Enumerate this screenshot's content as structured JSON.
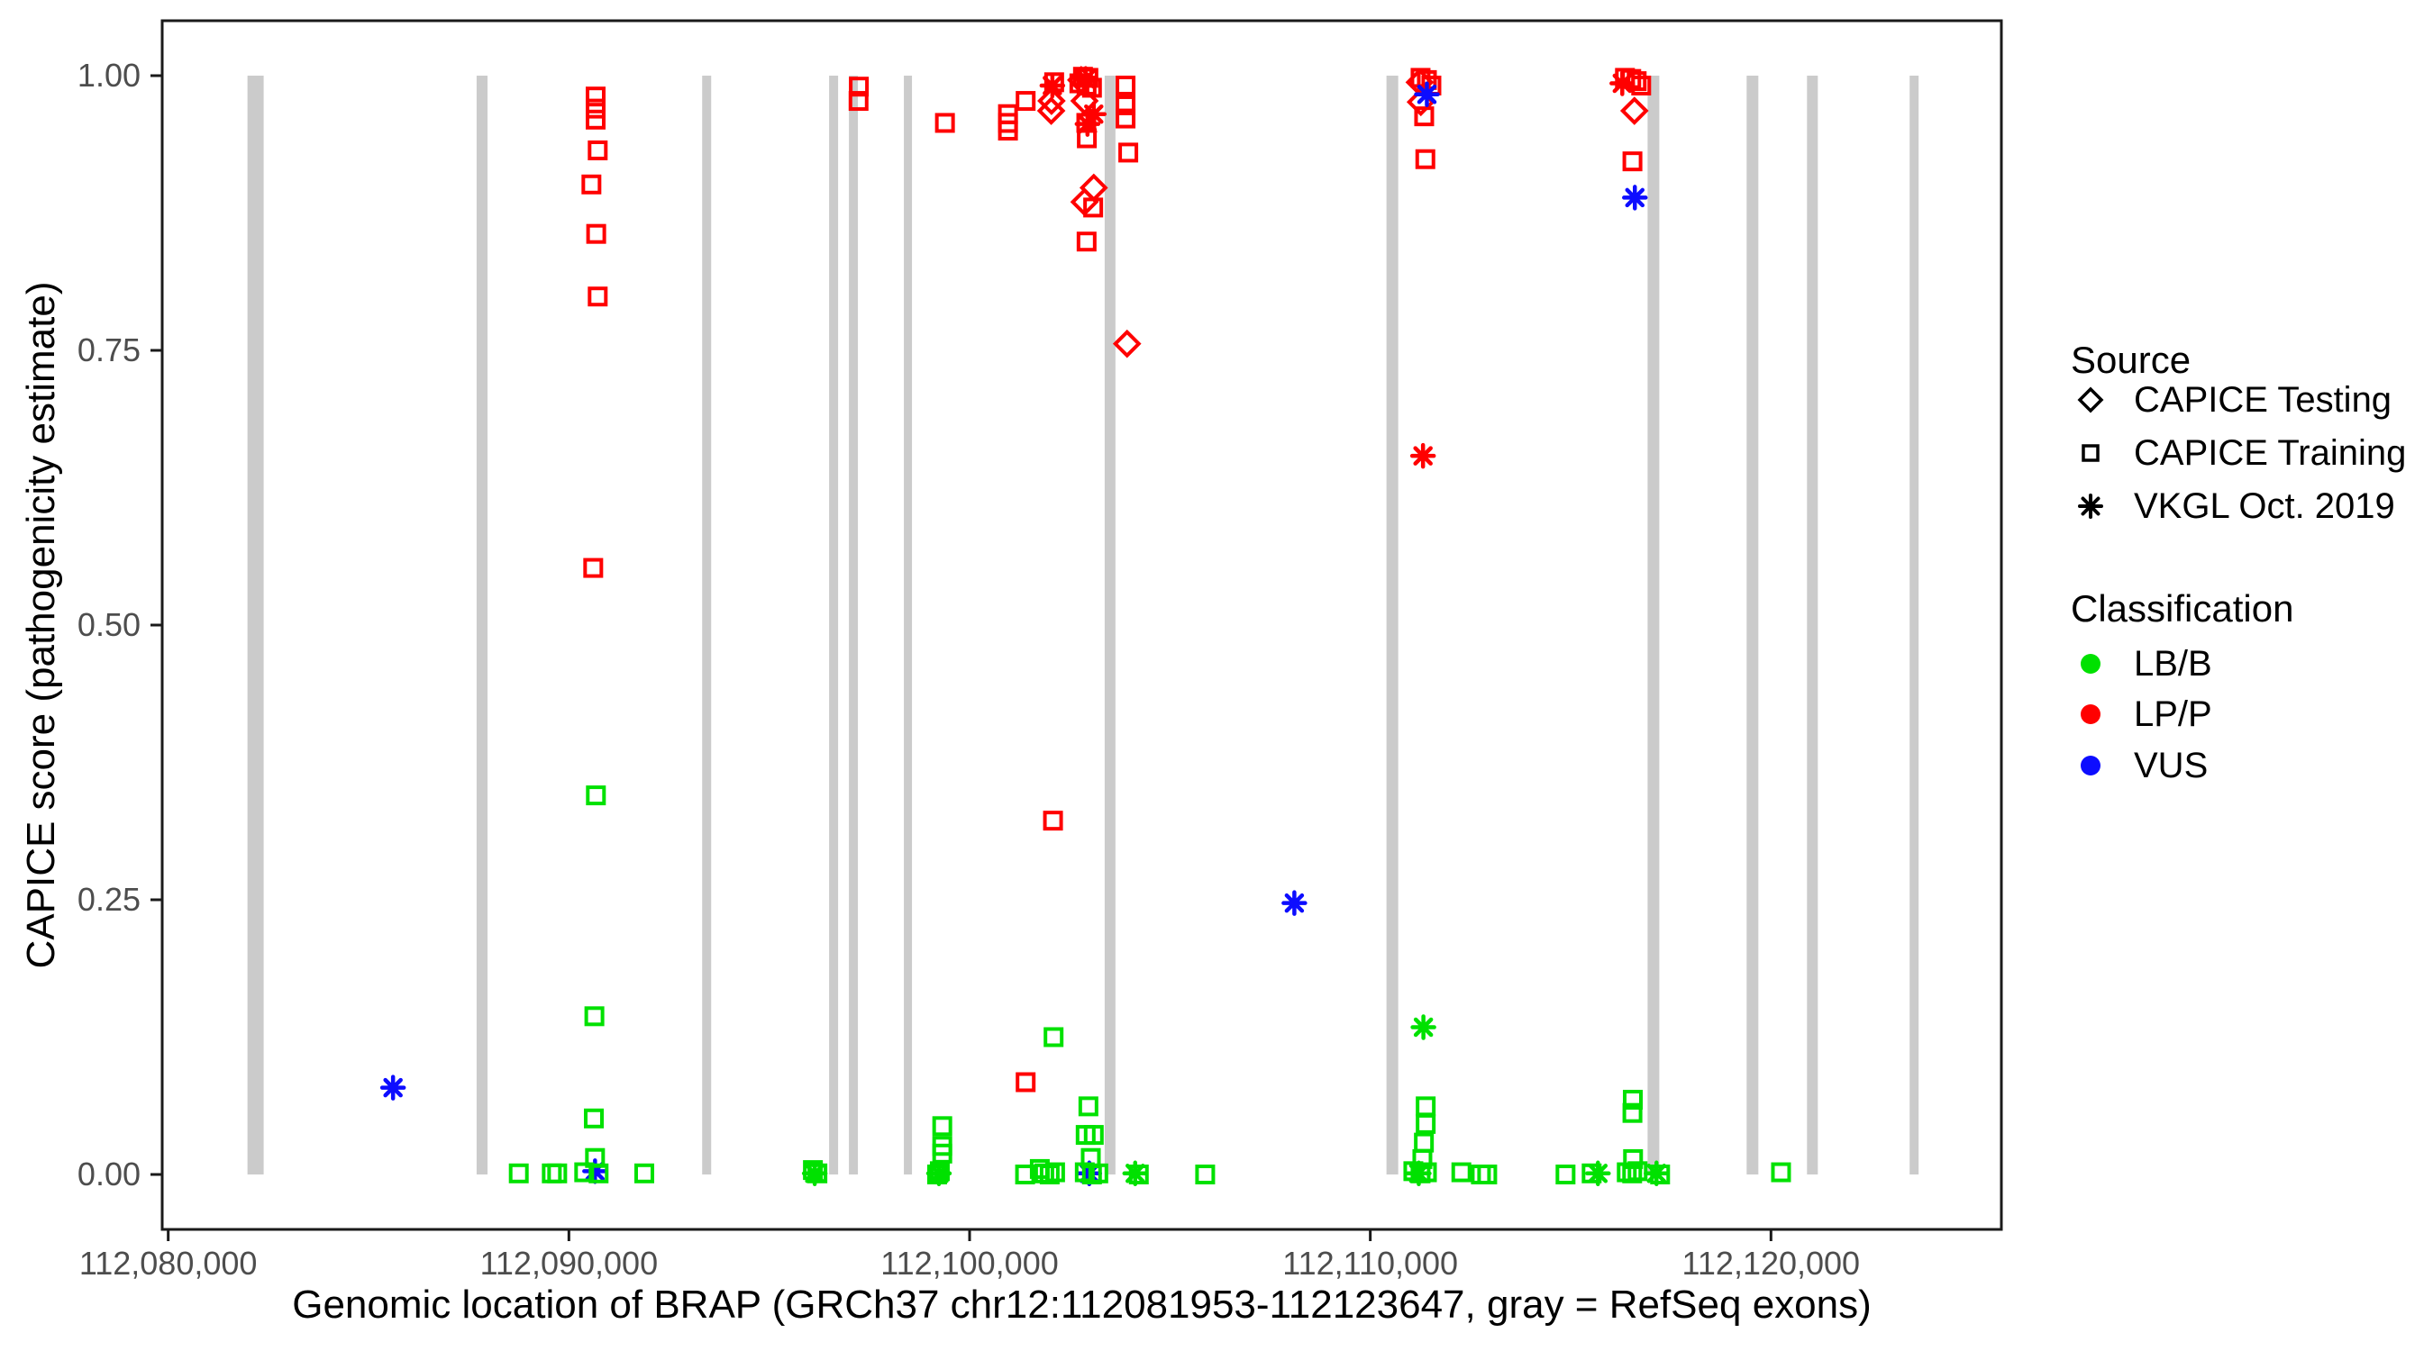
{
  "figure_type": "ggplot-style scatter plot",
  "colors": {
    "lbb": "#00E100",
    "lpp": "#FF0000",
    "vus": "#0D0DFF",
    "exon": "#CBCBCB",
    "axis_text": "#4D4D4D",
    "axis_line": "#1A1A1A",
    "background": "#FFFFFF",
    "legend_key": "#000000"
  },
  "legend": {
    "source": {
      "title": "Source",
      "items": [
        {
          "label": "CAPICE Testing",
          "shape": "diamond"
        },
        {
          "label": "CAPICE Training",
          "shape": "square"
        },
        {
          "label": "VKGL Oct. 2019",
          "shape": "asterisk"
        }
      ]
    },
    "classification": {
      "title": "Classification",
      "items": [
        {
          "label": "LB/B",
          "class": "LB"
        },
        {
          "label": "LP/P",
          "class": "LP"
        },
        {
          "label": "VUS",
          "class": "VUS"
        }
      ]
    }
  },
  "chart_data": {
    "type": "scatter",
    "title": "",
    "xlabel": "Genomic location of BRAP (GRCh37 chr12:112081953-112123647, gray = RefSeq exons)",
    "ylabel": "CAPICE score (pathogenicity estimate)",
    "legend_position": "right",
    "grid": false,
    "xlim": [
      112079850,
      112125750
    ],
    "ylim": [
      -0.05,
      1.05
    ],
    "x_ticks": [
      "112,080,000",
      "112,090,000",
      "112,100,000",
      "112,110,000",
      "112,120,000"
    ],
    "x_tick_values": [
      112080000,
      112090000,
      112100000,
      112110000,
      112120000
    ],
    "y_ticks": [
      "0.00",
      "0.25",
      "0.50",
      "0.75",
      "1.00"
    ],
    "y_tick_values": [
      0,
      0.25,
      0.5,
      0.75,
      1
    ],
    "shapes": {
      "sq": "CAPICE Training (open square)",
      "di": "CAPICE Testing (open diamond)",
      "as": "VKGL Oct. 2019 (asterisk)"
    },
    "classes": {
      "LB": {
        "label": "LB/B",
        "color": "#00E100"
      },
      "LP": {
        "label": "LP/P",
        "color": "#FF0000"
      },
      "VUS": {
        "label": "VUS",
        "color": "#0D0DFF"
      }
    },
    "exons_note": "gray vertical bars = RefSeq exons, drawn from score 0.00 to 1.00",
    "exons": [
      {
        "start": 112081978,
        "end": 112082382
      },
      {
        "start": 112087697,
        "end": 112087969
      },
      {
        "start": 112093326,
        "end": 112093551
      },
      {
        "start": 112096494,
        "end": 112096719
      },
      {
        "start": 112096989,
        "end": 112097213
      },
      {
        "start": 112098360,
        "end": 112098562
      },
      {
        "start": 112103371,
        "end": 112103640
      },
      {
        "start": 112110404,
        "end": 112110697
      },
      {
        "start": 112116921,
        "end": 112117213
      },
      {
        "start": 112119393,
        "end": 112119685
      },
      {
        "start": 112120899,
        "end": 112121169
      },
      {
        "start": 112123461,
        "end": 112123685
      }
    ],
    "points": [
      {
        "g": 112090667,
        "s": 0.981,
        "m": "sq",
        "c": "LP"
      },
      {
        "g": 112090667,
        "s": 0.97,
        "m": "sq",
        "c": "LP"
      },
      {
        "g": 112090667,
        "s": 0.96,
        "m": "sq",
        "c": "LP"
      },
      {
        "g": 112090719,
        "s": 0.932,
        "m": "sq",
        "c": "LP"
      },
      {
        "g": 112090562,
        "s": 0.901,
        "m": "sq",
        "c": "LP"
      },
      {
        "g": 112090681,
        "s": 0.856,
        "m": "sq",
        "c": "LP"
      },
      {
        "g": 112090719,
        "s": 0.799,
        "m": "sq",
        "c": "LP"
      },
      {
        "g": 112090607,
        "s": 0.552,
        "m": "sq",
        "c": "LP"
      },
      {
        "g": 112097236,
        "s": 0.99,
        "m": "sq",
        "c": "LP"
      },
      {
        "g": 112097229,
        "s": 0.977,
        "m": "sq",
        "c": "LP"
      },
      {
        "g": 112099385,
        "s": 0.957,
        "m": "sq",
        "c": "LP"
      },
      {
        "g": 112100958,
        "s": 0.965,
        "m": "sq",
        "c": "LP"
      },
      {
        "g": 112100958,
        "s": 0.957,
        "m": "sq",
        "c": "LP"
      },
      {
        "g": 112100958,
        "s": 0.95,
        "m": "sq",
        "c": "LP"
      },
      {
        "g": 112101399,
        "s": 0.977,
        "m": "sq",
        "c": "LP"
      },
      {
        "g": 112102111,
        "s": 0.994,
        "m": "sq",
        "c": "LP"
      },
      {
        "g": 112102740,
        "s": 0.993,
        "m": "sq",
        "c": "LP"
      },
      {
        "g": 112102830,
        "s": 0.999,
        "m": "sq",
        "c": "LP"
      },
      {
        "g": 112102965,
        "s": 0.998,
        "m": "sq",
        "c": "LP"
      },
      {
        "g": 112102920,
        "s": 0.991,
        "m": "sq",
        "c": "LP"
      },
      {
        "g": 112103054,
        "s": 0.989,
        "m": "sq",
        "c": "LP"
      },
      {
        "g": 112102913,
        "s": 0.957,
        "m": "sq",
        "c": "LP"
      },
      {
        "g": 112102926,
        "s": 0.943,
        "m": "sq",
        "c": "LP"
      },
      {
        "g": 112103892,
        "s": 0.991,
        "m": "sq",
        "c": "LP"
      },
      {
        "g": 112103892,
        "s": 0.973,
        "m": "sq",
        "c": "LP"
      },
      {
        "g": 112103892,
        "s": 0.961,
        "m": "sq",
        "c": "LP"
      },
      {
        "g": 112103960,
        "s": 0.93,
        "m": "sq",
        "c": "LP"
      },
      {
        "g": 112103084,
        "s": 0.88,
        "m": "sq",
        "c": "LP"
      },
      {
        "g": 112102920,
        "s": 0.849,
        "m": "sq",
        "c": "LP"
      },
      {
        "g": 112102082,
        "s": 0.322,
        "m": "sq",
        "c": "LP"
      },
      {
        "g": 112101399,
        "s": 0.084,
        "m": "sq",
        "c": "LP"
      },
      {
        "g": 112111255,
        "s": 0.998,
        "m": "sq",
        "c": "LP"
      },
      {
        "g": 112111413,
        "s": 0.996,
        "m": "sq",
        "c": "LP"
      },
      {
        "g": 112111525,
        "s": 0.991,
        "m": "sq",
        "c": "LP"
      },
      {
        "g": 112111345,
        "s": 0.963,
        "m": "sq",
        "c": "LP"
      },
      {
        "g": 112111374,
        "s": 0.924,
        "m": "sq",
        "c": "LP"
      },
      {
        "g": 112116356,
        "s": 0.998,
        "m": "sq",
        "c": "LP"
      },
      {
        "g": 112116513,
        "s": 0.997,
        "m": "sq",
        "c": "LP"
      },
      {
        "g": 112116648,
        "s": 0.995,
        "m": "sq",
        "c": "LP"
      },
      {
        "g": 112116761,
        "s": 0.991,
        "m": "sq",
        "c": "LP"
      },
      {
        "g": 112116543,
        "s": 0.922,
        "m": "sq",
        "c": "LP"
      },
      {
        "g": 112102044,
        "s": 0.977,
        "m": "di",
        "c": "LP"
      },
      {
        "g": 112102037,
        "s": 0.968,
        "m": "di",
        "c": "LP"
      },
      {
        "g": 112102785,
        "s": 0.996,
        "m": "di",
        "c": "LP"
      },
      {
        "g": 112102868,
        "s": 0.977,
        "m": "di",
        "c": "LP"
      },
      {
        "g": 112103099,
        "s": 0.898,
        "m": "di",
        "c": "LP"
      },
      {
        "g": 112102868,
        "s": 0.885,
        "m": "di",
        "c": "LP"
      },
      {
        "g": 112103930,
        "s": 0.756,
        "m": "di",
        "c": "LP"
      },
      {
        "g": 112111233,
        "s": 0.994,
        "m": "di",
        "c": "LP"
      },
      {
        "g": 112111262,
        "s": 0.976,
        "m": "di",
        "c": "LP"
      },
      {
        "g": 112116592,
        "s": 0.968,
        "m": "di",
        "c": "LP"
      },
      {
        "g": 112102066,
        "s": 0.991,
        "m": "as",
        "c": "LP"
      },
      {
        "g": 112102897,
        "s": 0.997,
        "m": "as",
        "c": "LP"
      },
      {
        "g": 112103099,
        "s": 0.965,
        "m": "as",
        "c": "LP"
      },
      {
        "g": 112102942,
        "s": 0.956,
        "m": "as",
        "c": "LP"
      },
      {
        "g": 112111316,
        "s": 0.654,
        "m": "as",
        "c": "LP"
      },
      {
        "g": 112116289,
        "s": 0.993,
        "m": "as",
        "c": "LP"
      },
      {
        "g": 112085611,
        "s": 0.079,
        "m": "as",
        "c": "VUS"
      },
      {
        "g": 112090652,
        "s": 0.003,
        "m": "as",
        "c": "VUS"
      },
      {
        "g": 112102987,
        "s": 0.001,
        "m": "as",
        "c": "VUS"
      },
      {
        "g": 112108105,
        "s": 0.247,
        "m": "as",
        "c": "VUS"
      },
      {
        "g": 112111413,
        "s": 0.983,
        "m": "as",
        "c": "VUS"
      },
      {
        "g": 112116603,
        "s": 0.889,
        "m": "as",
        "c": "VUS"
      },
      {
        "g": 112090674,
        "s": 0.345,
        "m": "sq",
        "c": "LB"
      },
      {
        "g": 112090636,
        "s": 0.144,
        "m": "sq",
        "c": "LB"
      },
      {
        "g": 112090622,
        "s": 0.051,
        "m": "sq",
        "c": "LB"
      },
      {
        "g": 112090652,
        "s": 0.015,
        "m": "sq",
        "c": "LB"
      },
      {
        "g": 112088749,
        "s": 0.001,
        "m": "sq",
        "c": "LB"
      },
      {
        "g": 112089573,
        "s": 0.001,
        "m": "sq",
        "c": "LB"
      },
      {
        "g": 112089708,
        "s": 0.001,
        "m": "sq",
        "c": "LB"
      },
      {
        "g": 112090382,
        "s": 0.002,
        "m": "sq",
        "c": "LB"
      },
      {
        "g": 112090741,
        "s": 0.001,
        "m": "sq",
        "c": "LB"
      },
      {
        "g": 112091881,
        "s": 0.001,
        "m": "sq",
        "c": "LB"
      },
      {
        "g": 112096090,
        "s": 0.004,
        "m": "sq",
        "c": "LB"
      },
      {
        "g": 112096202,
        "s": 0.001,
        "m": "sq",
        "c": "LB"
      },
      {
        "g": 112099318,
        "s": 0.044,
        "m": "sq",
        "c": "LB"
      },
      {
        "g": 112099318,
        "s": 0.026,
        "m": "sq",
        "c": "LB"
      },
      {
        "g": 112099318,
        "s": 0.019,
        "m": "sq",
        "c": "LB"
      },
      {
        "g": 112099257,
        "s": 0.003,
        "m": "sq",
        "c": "LB"
      },
      {
        "g": 112099190,
        "s": 0.0,
        "m": "sq",
        "c": "LB"
      },
      {
        "g": 112102096,
        "s": 0.125,
        "m": "sq",
        "c": "LB"
      },
      {
        "g": 112102965,
        "s": 0.062,
        "m": "sq",
        "c": "LB"
      },
      {
        "g": 112102897,
        "s": 0.036,
        "m": "sq",
        "c": "LB"
      },
      {
        "g": 112103099,
        "s": 0.036,
        "m": "sq",
        "c": "LB"
      },
      {
        "g": 112103025,
        "s": 0.015,
        "m": "sq",
        "c": "LB"
      },
      {
        "g": 112102875,
        "s": 0.002,
        "m": "sq",
        "c": "LB"
      },
      {
        "g": 112103054,
        "s": 0.0,
        "m": "sq",
        "c": "LB"
      },
      {
        "g": 112103212,
        "s": 0.001,
        "m": "sq",
        "c": "LB"
      },
      {
        "g": 112101385,
        "s": 0.0,
        "m": "sq",
        "c": "LB"
      },
      {
        "g": 112101752,
        "s": 0.005,
        "m": "sq",
        "c": "LB"
      },
      {
        "g": 112101864,
        "s": 0.001,
        "m": "sq",
        "c": "LB"
      },
      {
        "g": 112101999,
        "s": 0.0,
        "m": "sq",
        "c": "LB"
      },
      {
        "g": 112102134,
        "s": 0.002,
        "m": "sq",
        "c": "LB"
      },
      {
        "g": 112104223,
        "s": 0.0,
        "m": "sq",
        "c": "LB"
      },
      {
        "g": 112105879,
        "s": 0.0,
        "m": "sq",
        "c": "LB"
      },
      {
        "g": 112111383,
        "s": 0.062,
        "m": "sq",
        "c": "LB"
      },
      {
        "g": 112111383,
        "s": 0.046,
        "m": "sq",
        "c": "LB"
      },
      {
        "g": 112111338,
        "s": 0.029,
        "m": "sq",
        "c": "LB"
      },
      {
        "g": 112111300,
        "s": 0.014,
        "m": "sq",
        "c": "LB"
      },
      {
        "g": 112111075,
        "s": 0.003,
        "m": "sq",
        "c": "LB"
      },
      {
        "g": 112111255,
        "s": 0.001,
        "m": "sq",
        "c": "LB"
      },
      {
        "g": 112111413,
        "s": 0.002,
        "m": "sq",
        "c": "LB"
      },
      {
        "g": 112112273,
        "s": 0.002,
        "m": "sq",
        "c": "LB"
      },
      {
        "g": 112112761,
        "s": 0.0,
        "m": "sq",
        "c": "LB"
      },
      {
        "g": 112112918,
        "s": 0.0,
        "m": "sq",
        "c": "LB"
      },
      {
        "g": 112114873,
        "s": 0.0,
        "m": "sq",
        "c": "LB"
      },
      {
        "g": 112115525,
        "s": 0.001,
        "m": "sq",
        "c": "LB"
      },
      {
        "g": 112116552,
        "s": 0.068,
        "m": "sq",
        "c": "LB"
      },
      {
        "g": 112116543,
        "s": 0.056,
        "m": "sq",
        "c": "LB"
      },
      {
        "g": 112116558,
        "s": 0.014,
        "m": "sq",
        "c": "LB"
      },
      {
        "g": 112116401,
        "s": 0.002,
        "m": "sq",
        "c": "LB"
      },
      {
        "g": 112116536,
        "s": 0.001,
        "m": "sq",
        "c": "LB"
      },
      {
        "g": 112116671,
        "s": 0.003,
        "m": "sq",
        "c": "LB"
      },
      {
        "g": 112117233,
        "s": 0.0,
        "m": "sq",
        "c": "LB"
      },
      {
        "g": 112120251,
        "s": 0.002,
        "m": "sq",
        "c": "LB"
      },
      {
        "g": 112096135,
        "s": 0.001,
        "m": "as",
        "c": "LB"
      },
      {
        "g": 112099235,
        "s": 0.001,
        "m": "as",
        "c": "LB"
      },
      {
        "g": 112104133,
        "s": 0.001,
        "m": "as",
        "c": "LB"
      },
      {
        "g": 112111326,
        "s": 0.134,
        "m": "as",
        "c": "LB"
      },
      {
        "g": 112111210,
        "s": 0.001,
        "m": "as",
        "c": "LB"
      },
      {
        "g": 112115682,
        "s": 0.001,
        "m": "as",
        "c": "LB"
      },
      {
        "g": 112117143,
        "s": 0.001,
        "m": "as",
        "c": "LB"
      }
    ]
  }
}
